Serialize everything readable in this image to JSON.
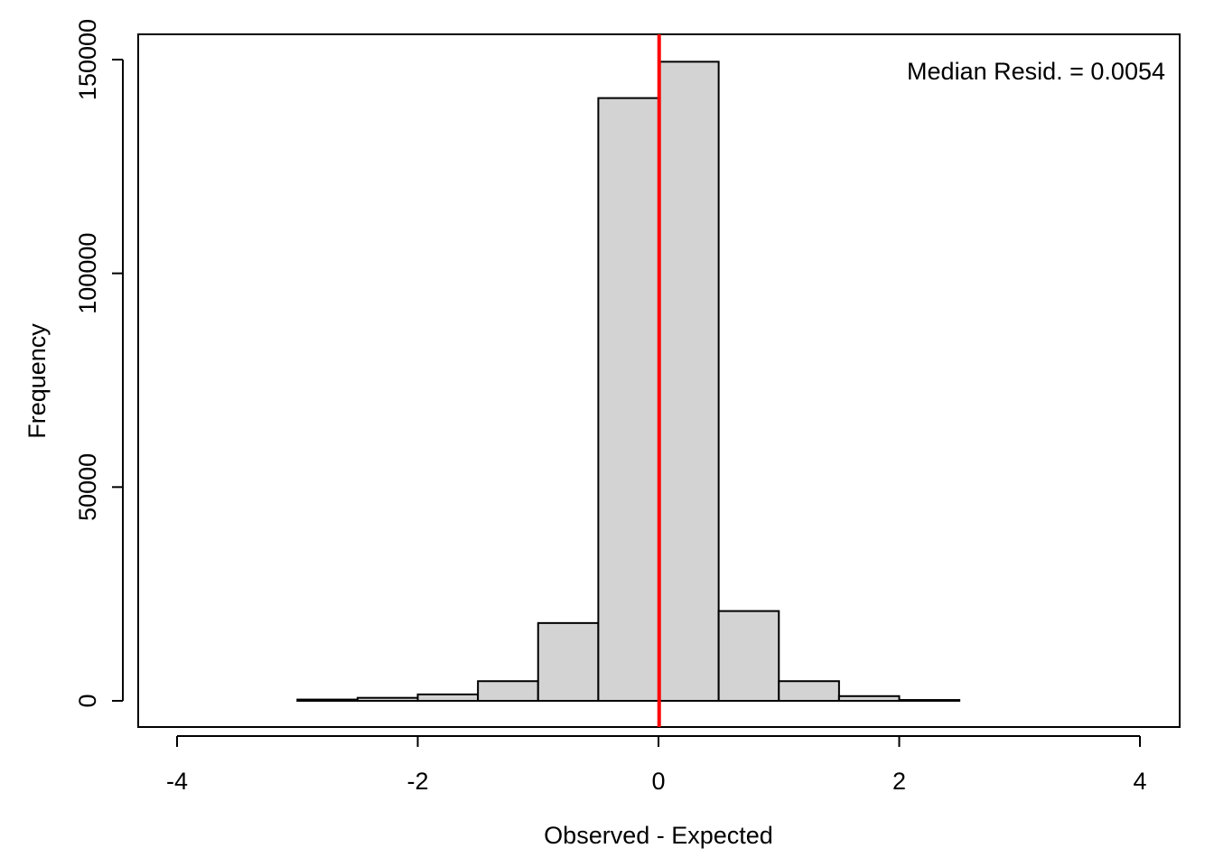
{
  "chart_data": {
    "type": "bar",
    "subtype": "histogram",
    "xlabel": "Observed - Expected",
    "ylabel": "Frequency",
    "annotation": "Median Resid. = 0.0054",
    "bins": [
      {
        "x0": -4.0,
        "x1": -3.5,
        "count": 0
      },
      {
        "x0": -3.5,
        "x1": -3.0,
        "count": 0
      },
      {
        "x0": -3.0,
        "x1": -2.5,
        "count": 300
      },
      {
        "x0": -2.5,
        "x1": -2.0,
        "count": 700
      },
      {
        "x0": -2.0,
        "x1": -1.5,
        "count": 1500
      },
      {
        "x0": -1.5,
        "x1": -1.0,
        "count": 4600
      },
      {
        "x0": -1.0,
        "x1": -0.5,
        "count": 18200
      },
      {
        "x0": -0.5,
        "x1": 0.0,
        "count": 141000
      },
      {
        "x0": 0.0,
        "x1": 0.5,
        "count": 149500
      },
      {
        "x0": 0.5,
        "x1": 1.0,
        "count": 21000
      },
      {
        "x0": 1.0,
        "x1": 1.5,
        "count": 4600
      },
      {
        "x0": 1.5,
        "x1": 2.0,
        "count": 1100
      },
      {
        "x0": 2.0,
        "x1": 2.5,
        "count": 200
      },
      {
        "x0": 2.5,
        "x1": 3.0,
        "count": 0
      },
      {
        "x0": 3.0,
        "x1": 3.5,
        "count": 0
      },
      {
        "x0": 3.5,
        "x1": 4.0,
        "count": 0
      }
    ],
    "vline": {
      "x": 0.0054,
      "color": "#ff0000"
    },
    "xlim": [
      -4,
      4
    ],
    "ylim": [
      0,
      150000
    ],
    "xticks": [
      -4,
      -2,
      0,
      2,
      4
    ],
    "xtick_labels": [
      "-4",
      "-2",
      "0",
      "2",
      "4"
    ],
    "yticks": [
      0,
      50000,
      100000,
      150000
    ],
    "ytick_labels": [
      "0",
      "50000",
      "100000",
      "150000"
    ],
    "bar_fill": "#d3d3d3",
    "bar_stroke": "#000000",
    "grid": false,
    "annotation_position": "top-right"
  }
}
